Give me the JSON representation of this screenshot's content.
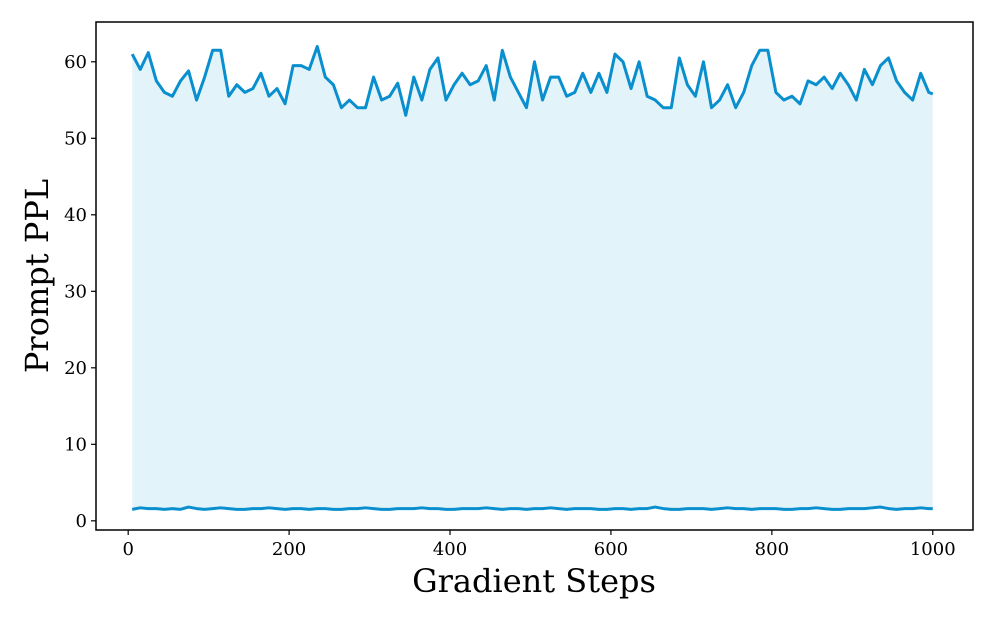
{
  "chart_data": {
    "type": "line",
    "x_label": "Gradient Steps",
    "y_label": "Prompt PPL",
    "x": [
      5,
      15,
      25,
      35,
      45,
      55,
      65,
      75,
      85,
      95,
      105,
      115,
      125,
      135,
      145,
      155,
      165,
      175,
      185,
      195,
      205,
      215,
      225,
      235,
      245,
      255,
      265,
      275,
      285,
      295,
      305,
      315,
      325,
      335,
      345,
      355,
      365,
      375,
      385,
      395,
      405,
      415,
      425,
      435,
      445,
      455,
      465,
      475,
      485,
      495,
      505,
      515,
      525,
      535,
      545,
      555,
      565,
      575,
      585,
      595,
      605,
      615,
      625,
      635,
      645,
      655,
      665,
      675,
      685,
      695,
      705,
      715,
      725,
      735,
      745,
      755,
      765,
      775,
      785,
      795,
      805,
      815,
      825,
      835,
      845,
      855,
      865,
      875,
      885,
      895,
      905,
      915,
      925,
      935,
      945,
      955,
      965,
      975,
      985,
      995,
      1000
    ],
    "series": [
      {
        "color": "#0a8fce",
        "values": [
          61,
          59,
          61.2,
          57.5,
          56,
          55.5,
          57.5,
          58.8,
          55,
          58,
          61.5,
          61.5,
          55.5,
          57,
          56,
          56.5,
          58.5,
          55.5,
          56.5,
          54.5,
          59.5,
          59.5,
          59,
          62,
          58,
          57,
          54,
          55,
          54,
          54,
          58,
          55,
          55.5,
          57.2,
          53,
          58,
          55,
          59,
          60.5,
          55,
          57,
          58.5,
          57,
          57.5,
          59.5,
          55,
          61.5,
          58,
          56,
          54,
          60,
          55,
          58,
          58,
          55.5,
          56,
          58.5,
          56,
          58.5,
          56,
          61,
          60,
          56.5,
          60,
          55.5,
          55,
          54,
          54,
          60.5,
          57,
          55.5,
          60,
          54,
          55,
          57,
          54,
          56,
          59.5,
          61.5,
          61.5,
          56,
          55,
          55.5,
          54.5,
          57.5,
          57,
          58,
          56.5,
          58.5,
          57,
          55,
          59,
          57,
          59.5,
          60.5,
          57.5,
          56,
          55,
          58.5,
          56,
          55.8
        ]
      },
      {
        "color": "#0a8fce",
        "values": [
          1.5,
          1.7,
          1.6,
          1.6,
          1.5,
          1.6,
          1.5,
          1.8,
          1.6,
          1.5,
          1.6,
          1.7,
          1.6,
          1.5,
          1.5,
          1.6,
          1.6,
          1.7,
          1.6,
          1.5,
          1.6,
          1.6,
          1.5,
          1.6,
          1.6,
          1.5,
          1.5,
          1.6,
          1.6,
          1.7,
          1.6,
          1.5,
          1.5,
          1.6,
          1.6,
          1.6,
          1.7,
          1.6,
          1.6,
          1.5,
          1.5,
          1.6,
          1.6,
          1.6,
          1.7,
          1.6,
          1.5,
          1.6,
          1.6,
          1.5,
          1.6,
          1.6,
          1.7,
          1.6,
          1.5,
          1.6,
          1.6,
          1.6,
          1.5,
          1.5,
          1.6,
          1.6,
          1.5,
          1.6,
          1.6,
          1.8,
          1.6,
          1.5,
          1.5,
          1.6,
          1.6,
          1.6,
          1.5,
          1.6,
          1.7,
          1.6,
          1.6,
          1.5,
          1.6,
          1.6,
          1.6,
          1.5,
          1.5,
          1.6,
          1.6,
          1.7,
          1.6,
          1.5,
          1.5,
          1.6,
          1.6,
          1.6,
          1.7,
          1.8,
          1.6,
          1.5,
          1.6,
          1.6,
          1.7,
          1.6,
          1.6
        ]
      }
    ],
    "fill_between": true,
    "fill_color": "#e3f3fa",
    "xlim": [
      -40,
      1050
    ],
    "ylim": [
      -1.2,
      65.2
    ],
    "xticks": [
      0,
      200,
      400,
      600,
      800,
      1000
    ],
    "yticks": [
      0,
      10,
      20,
      30,
      40,
      50,
      60
    ],
    "grid": false
  }
}
